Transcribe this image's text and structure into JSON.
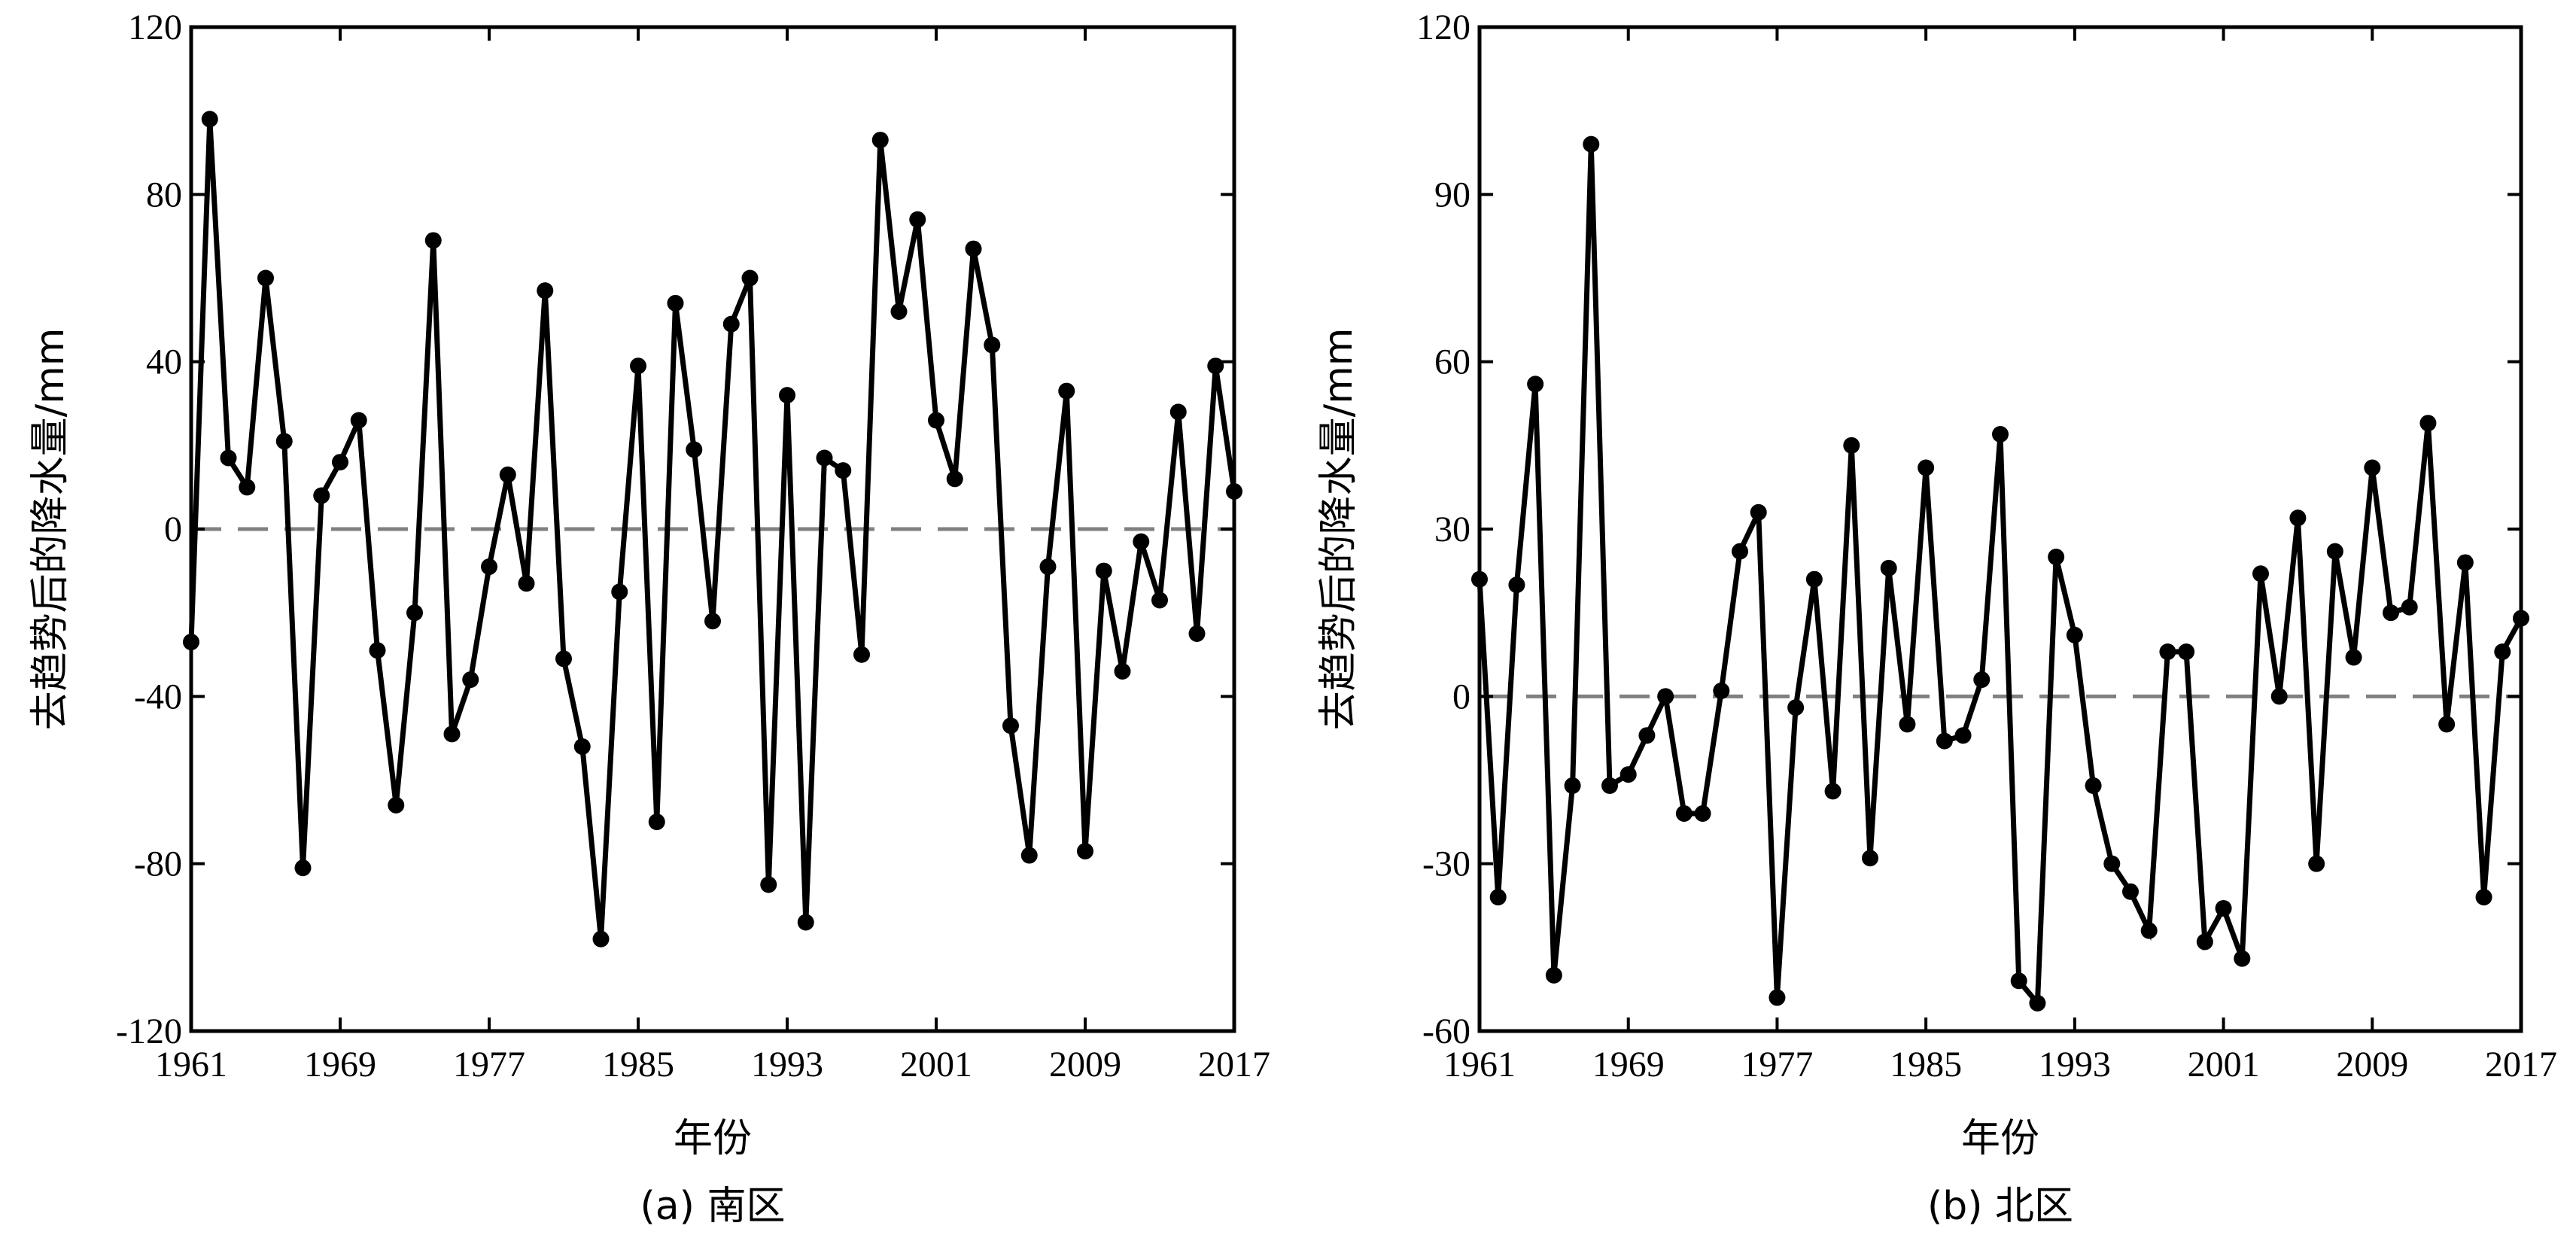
{
  "chart_data": [
    {
      "type": "line",
      "caption": "(a) 南区",
      "xlabel": "年份",
      "ylabel": "去趋势后的降水量/mm",
      "xlim": [
        1961,
        2017
      ],
      "ylim": [
        -120,
        120
      ],
      "xticks": [
        "1961",
        "1969",
        "1977",
        "1985",
        "1993",
        "2001",
        "2009",
        "2017"
      ],
      "yticks": [
        "-120",
        "-80",
        "-40",
        "0",
        "40",
        "80",
        "120"
      ],
      "reference_line": 0,
      "x": [
        1961,
        1962,
        1963,
        1964,
        1965,
        1966,
        1967,
        1968,
        1969,
        1970,
        1971,
        1972,
        1973,
        1974,
        1975,
        1976,
        1977,
        1978,
        1979,
        1980,
        1981,
        1982,
        1983,
        1984,
        1985,
        1986,
        1987,
        1988,
        1989,
        1990,
        1991,
        1992,
        1993,
        1994,
        1995,
        1996,
        1997,
        1998,
        1999,
        2000,
        2001,
        2002,
        2003,
        2004,
        2005,
        2006,
        2007,
        2008,
        2009,
        2010,
        2011,
        2012,
        2013,
        2014,
        2015,
        2016,
        2017
      ],
      "values": [
        -27,
        98,
        17,
        10,
        60,
        21,
        -81,
        8,
        16,
        26,
        -29,
        -66,
        -20,
        69,
        -49,
        -36,
        -9,
        13,
        -13,
        57,
        -31,
        -52,
        -98,
        -15,
        39,
        -70,
        54,
        19,
        -22,
        49,
        60,
        -85,
        32,
        -94,
        17,
        14,
        -30,
        93,
        52,
        74,
        26,
        12,
        67,
        44,
        -47,
        -78,
        -9,
        33,
        -77,
        -10,
        -34,
        -3,
        -17,
        28,
        -25,
        39,
        9
      ],
      "colors": {
        "line": "#000000",
        "reference": "#808080"
      }
    },
    {
      "type": "line",
      "caption": "(b) 北区",
      "xlabel": "年份",
      "ylabel": "去趋势后的降水量/mm",
      "xlim": [
        1961,
        2017
      ],
      "ylim": [
        -60,
        120
      ],
      "xticks": [
        "1961",
        "1969",
        "1977",
        "1985",
        "1993",
        "2001",
        "2009",
        "2017"
      ],
      "yticks": [
        "-60",
        "-30",
        "0",
        "30",
        "60",
        "90",
        "120"
      ],
      "reference_line": 0,
      "x": [
        1961,
        1962,
        1963,
        1964,
        1965,
        1966,
        1967,
        1968,
        1969,
        1970,
        1971,
        1972,
        1973,
        1974,
        1975,
        1976,
        1977,
        1978,
        1979,
        1980,
        1981,
        1982,
        1983,
        1984,
        1985,
        1986,
        1987,
        1988,
        1989,
        1990,
        1991,
        1992,
        1993,
        1994,
        1995,
        1996,
        1997,
        1998,
        1999,
        2000,
        2001,
        2002,
        2003,
        2004,
        2005,
        2006,
        2007,
        2008,
        2009,
        2010,
        2011,
        2012,
        2013,
        2014,
        2015,
        2016,
        2017
      ],
      "values": [
        21,
        -36,
        20,
        56,
        -50,
        -16,
        99,
        -16,
        -14,
        -7,
        0,
        -21,
        -21,
        1,
        26,
        33,
        -54,
        -2,
        21,
        -17,
        45,
        -29,
        23,
        -5,
        41,
        -8,
        -7,
        3,
        47,
        -51,
        -55,
        25,
        11,
        -16,
        -30,
        -35,
        -42,
        8,
        8,
        -44,
        -38,
        -47,
        22,
        0,
        32,
        -30,
        26,
        7,
        41,
        15,
        16,
        49,
        -5,
        24,
        -36,
        8,
        14
      ],
      "colors": {
        "line": "#000000",
        "reference": "#808080"
      }
    }
  ]
}
